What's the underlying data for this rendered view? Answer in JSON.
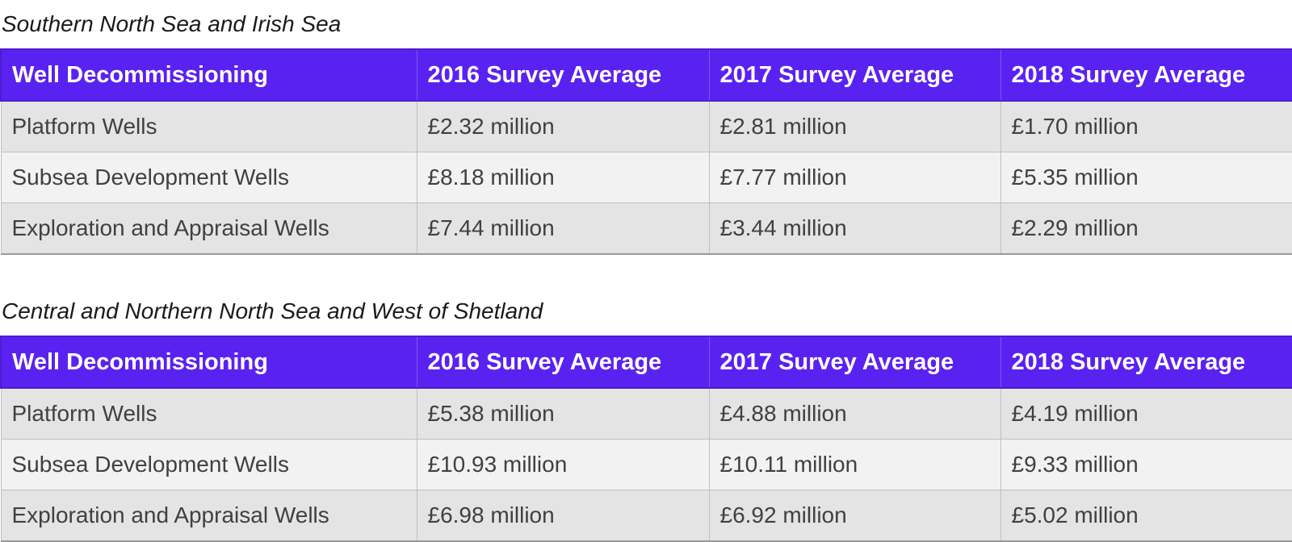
{
  "tables": [
    {
      "title": "Southern North Sea and Irish Sea",
      "headers": [
        "Well Decommissioning",
        "2016 Survey Average",
        "2017 Survey Average",
        "2018 Survey Average"
      ],
      "rows": [
        [
          "Platform Wells",
          "£2.32 million",
          "£2.81 million",
          "£1.70 million"
        ],
        [
          "Subsea Development Wells",
          "£8.18 million",
          "£7.77 million",
          "£5.35 million"
        ],
        [
          "Exploration and Appraisal Wells",
          "£7.44 million",
          "£3.44 million",
          "£2.29 million"
        ]
      ]
    },
    {
      "title": "Central and Northern North Sea and West of Shetland",
      "headers": [
        "Well Decommissioning",
        "2016 Survey Average",
        "2017 Survey Average",
        "2018 Survey Average"
      ],
      "rows": [
        [
          "Platform Wells",
          "£5.38 million",
          "£4.88 million",
          "£4.19 million"
        ],
        [
          "Subsea Development Wells",
          "£10.93 million",
          "£10.11 million",
          "£9.33 million"
        ],
        [
          "Exploration and Appraisal Wells",
          "£6.98 million",
          "£6.92 million",
          "£5.02 million"
        ]
      ]
    }
  ],
  "colors": {
    "header_background": "#5a22f0",
    "header_text": "#ffffff",
    "row_odd": "#e4e4e4",
    "row_even": "#f2f2f2"
  }
}
